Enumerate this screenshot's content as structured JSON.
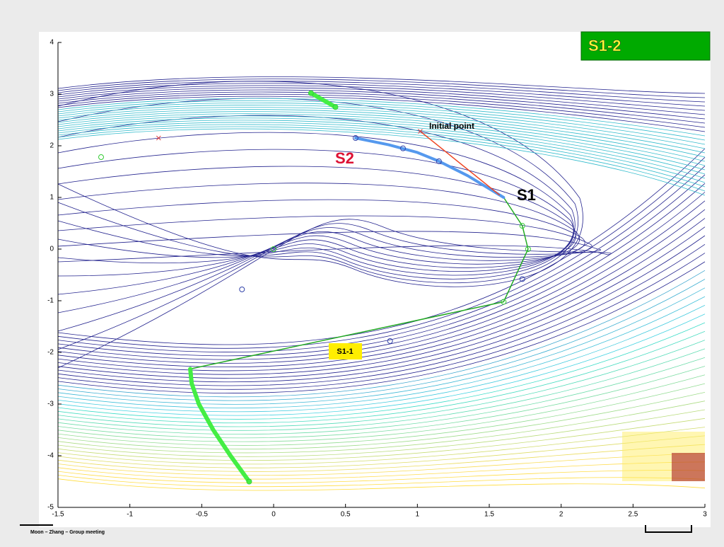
{
  "chart_data": {
    "type": "line",
    "xlim": [
      -1.5,
      3
    ],
    "xticks": [
      -1.5,
      -1,
      -0.5,
      0,
      0.5,
      1,
      1.5,
      2,
      2.5,
      3
    ],
    "ylim": [
      -5,
      4
    ],
    "yticks": [
      -5,
      -4,
      -3,
      -2,
      -1,
      0,
      1,
      2,
      3,
      4
    ],
    "series": [
      {
        "color": "#22aa22",
        "width": 1.5,
        "x": [
          1.6,
          1.73,
          1.77,
          1.6,
          -0.58
        ],
        "values": [
          1.0,
          0.45,
          0.0,
          -1.02,
          -2.32
        ]
      },
      {
        "color": "#44ee44",
        "width": 6,
        "x": [
          -0.58,
          -0.57,
          -0.52,
          -0.42,
          -0.3,
          -0.17
        ],
        "values": [
          -2.32,
          -2.6,
          -3.0,
          -3.5,
          -4.0,
          -4.5
        ]
      },
      {
        "color": "#44ee44",
        "width": 6,
        "x": [
          0.26,
          0.43
        ],
        "values": [
          3.02,
          2.75
        ]
      },
      {
        "color": "#5599ee",
        "width": 4,
        "x": [
          1.6,
          1.35,
          1.15,
          1.0,
          0.8,
          0.57
        ],
        "values": [
          1.0,
          1.42,
          1.7,
          1.87,
          2.02,
          2.15
        ]
      },
      {
        "color": "#ee4422",
        "width": 1.5,
        "x": [
          1.02,
          1.57
        ],
        "values": [
          2.28,
          1.05
        ]
      }
    ],
    "markers": [
      {
        "color": "#dd3333",
        "shape": "x",
        "x": [
          -0.8,
          1.02
        ],
        "values": [
          2.15,
          2.28
        ]
      },
      {
        "color": "#33cc33",
        "shape": "o",
        "x": [
          -1.2,
          0,
          1.73,
          1.77,
          1.6,
          0.26,
          0.43,
          -0.17
        ],
        "values": [
          1.78,
          0,
          0.45,
          0,
          -1.02,
          3.02,
          2.75,
          -4.5
        ]
      },
      {
        "color": "#3344aa",
        "shape": "o",
        "x": [
          1.73,
          0.81,
          -0.22,
          0.57,
          1.15,
          0.9
        ],
        "values": [
          -0.58,
          -1.78,
          -0.78,
          2.15,
          1.7,
          1.95
        ]
      }
    ],
    "annotations": {
      "box_title": "S1-2",
      "initial_point": "Initial point",
      "s2": "S2",
      "s1": "S1",
      "s1_1": "S1-1"
    }
  },
  "footer": "Moon – Zhang – Group meeting"
}
